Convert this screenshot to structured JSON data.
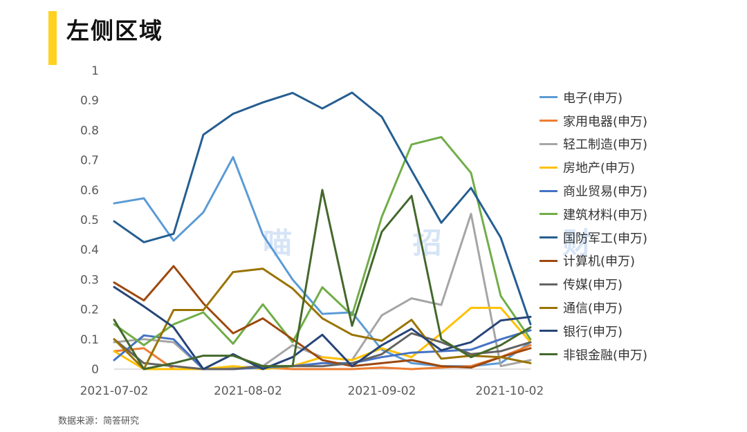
{
  "header": {
    "title": "左侧区域"
  },
  "watermark": "喵 招 财",
  "footer": {
    "source": "数据来源：简答研究"
  },
  "chart_data": {
    "type": "line",
    "title": "左侧区域",
    "xlabel": "",
    "ylabel": "",
    "ylim": [
      0,
      1
    ],
    "yticks": [
      "0",
      "0.1",
      "0.2",
      "0.3",
      "0.4",
      "0.5",
      "0.6",
      "0.7",
      "0.8",
      "0.9",
      "1"
    ],
    "xtick_labels": [
      {
        "index": 0,
        "label": "2021-07-02"
      },
      {
        "index": 4.5,
        "label": "2021-08-02"
      },
      {
        "index": 9,
        "label": "2021-09-02"
      },
      {
        "index": 13.3,
        "label": "2021-10-02"
      }
    ],
    "x_count": 15,
    "grid": false,
    "legend_position": "right",
    "series": [
      {
        "name": "电子(申万)",
        "color": "#5B9BD5",
        "values": [
          0.555,
          0.572,
          0.43,
          0.525,
          0.71,
          0.45,
          0.3,
          0.185,
          0.19,
          0.065,
          0.02,
          0.01,
          0.01,
          0.02,
          0.09
        ]
      },
      {
        "name": "家用电器(申万)",
        "color": "#ED7D31",
        "values": [
          0.06,
          0.07,
          0.0,
          0.0,
          0.005,
          0.005,
          0.0,
          0.0,
          0.0,
          0.005,
          0.0,
          0.005,
          0.01,
          0.04,
          0.08
        ]
      },
      {
        "name": "轻工制造(申万)",
        "color": "#A5A5A5",
        "values": [
          0.09,
          0.1,
          0.09,
          0.0,
          0.005,
          0.01,
          0.08,
          0.04,
          0.03,
          0.18,
          0.237,
          0.215,
          0.52,
          0.01,
          0.03
        ]
      },
      {
        "name": "房地产(申万)",
        "color": "#FFC000",
        "values": [
          0.06,
          0.0,
          0.0,
          0.0,
          0.01,
          0.0,
          0.01,
          0.04,
          0.03,
          0.07,
          0.04,
          0.12,
          0.205,
          0.205,
          0.09
        ]
      },
      {
        "name": "商业贸易(申万)",
        "color": "#4472C4",
        "values": [
          0.03,
          0.113,
          0.1,
          0.0,
          0.0,
          0.005,
          0.01,
          0.02,
          0.02,
          0.04,
          0.055,
          0.06,
          0.065,
          0.1,
          0.13
        ]
      },
      {
        "name": "建筑材料(申万)",
        "color": "#70AD47",
        "values": [
          0.15,
          0.08,
          0.15,
          0.19,
          0.085,
          0.217,
          0.09,
          0.274,
          0.18,
          0.51,
          0.752,
          0.777,
          0.657,
          0.245,
          0.1
        ]
      },
      {
        "name": "国防军工(申万)",
        "color": "#255E91",
        "values": [
          0.495,
          0.425,
          0.453,
          0.785,
          0.855,
          0.893,
          0.925,
          0.873,
          0.926,
          0.845,
          0.665,
          0.49,
          0.607,
          0.44,
          0.15
        ]
      },
      {
        "name": "计算机(申万)",
        "color": "#9E480E",
        "values": [
          0.29,
          0.23,
          0.345,
          0.22,
          0.12,
          0.17,
          0.1,
          0.03,
          0.01,
          0.02,
          0.03,
          0.01,
          0.005,
          0.04,
          0.07
        ]
      },
      {
        "name": "传媒(申万)",
        "color": "#636363",
        "values": [
          0.1,
          0.02,
          0.01,
          0.0,
          0.0,
          0.01,
          0.01,
          0.01,
          0.02,
          0.05,
          0.12,
          0.09,
          0.05,
          0.06,
          0.09
        ]
      },
      {
        "name": "通信(申万)",
        "color": "#997300",
        "values": [
          0.1,
          0.0,
          0.198,
          0.198,
          0.325,
          0.336,
          0.27,
          0.17,
          0.115,
          0.095,
          0.165,
          0.035,
          0.045,
          0.04,
          0.02
        ]
      },
      {
        "name": "银行(申万)",
        "color": "#264478",
        "values": [
          0.275,
          0.21,
          0.14,
          0.0,
          0.05,
          0.0,
          0.04,
          0.115,
          0.01,
          0.08,
          0.135,
          0.063,
          0.09,
          0.163,
          0.175
        ]
      },
      {
        "name": "非银金融(申万)",
        "color": "#43682B",
        "values": [
          0.165,
          0.0,
          0.02,
          0.045,
          0.045,
          0.01,
          0.01,
          0.6,
          0.145,
          0.46,
          0.58,
          0.1,
          0.04,
          0.08,
          0.14
        ]
      }
    ]
  }
}
